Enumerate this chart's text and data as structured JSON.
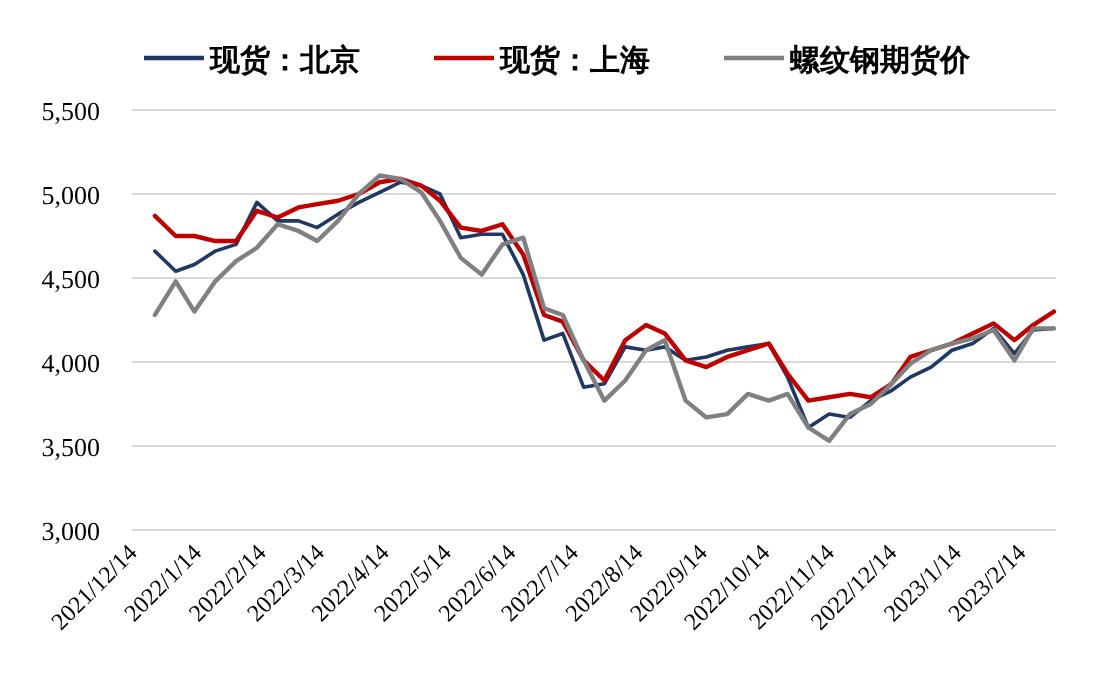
{
  "chart_data": {
    "type": "line",
    "x": [
      "2021-12-21",
      "2021-12-31",
      "2022-01-09",
      "2022-01-19",
      "2022-01-29",
      "2022-02-08",
      "2022-02-18",
      "2022-02-28",
      "2022-03-09",
      "2022-03-19",
      "2022-03-29",
      "2022-04-08",
      "2022-04-18",
      "2022-04-28",
      "2022-05-07",
      "2022-05-17",
      "2022-05-27",
      "2022-06-06",
      "2022-06-16",
      "2022-06-26",
      "2022-07-05",
      "2022-07-15",
      "2022-07-25",
      "2022-08-04",
      "2022-08-14",
      "2022-08-23",
      "2022-09-02",
      "2022-09-12",
      "2022-09-22",
      "2022-10-02",
      "2022-10-12",
      "2022-10-21",
      "2022-10-31",
      "2022-11-10",
      "2022-11-20",
      "2022-11-30",
      "2022-12-10",
      "2022-12-19",
      "2022-12-29",
      "2023-01-08",
      "2023-01-18",
      "2023-01-28",
      "2023-02-07",
      "2023-02-16",
      "2023-02-26"
    ],
    "series": [
      {
        "name": "现货：北京",
        "color": "#1f3864",
        "values": [
          4660,
          4540,
          4580,
          4660,
          4700,
          4950,
          4840,
          4840,
          4800,
          4880,
          4950,
          5010,
          5070,
          5050,
          5000,
          4740,
          4760,
          4760,
          4520,
          4130,
          4170,
          3850,
          3870,
          4090,
          4070,
          4090,
          4010,
          4030,
          4070,
          4090,
          4110,
          3910,
          3610,
          3690,
          3670,
          3770,
          3830,
          3910,
          3970,
          4070,
          4110,
          4200,
          4050,
          4190,
          4200
        ]
      },
      {
        "name": "现货：上海",
        "color": "#c00000",
        "values": [
          4870,
          4750,
          4750,
          4720,
          4720,
          4900,
          4860,
          4920,
          4940,
          4960,
          5000,
          5070,
          5090,
          5050,
          4960,
          4800,
          4780,
          4820,
          4640,
          4280,
          4240,
          4010,
          3890,
          4130,
          4220,
          4170,
          4010,
          3970,
          4030,
          4070,
          4110,
          3930,
          3770,
          3790,
          3810,
          3790,
          3870,
          4030,
          4070,
          4110,
          4170,
          4230,
          4130,
          4220,
          4300
        ]
      },
      {
        "name": "螺纹钢期货价",
        "color": "#808080",
        "values": [
          4280,
          4480,
          4300,
          4480,
          4600,
          4680,
          4820,
          4780,
          4720,
          4840,
          5000,
          5110,
          5090,
          5010,
          4840,
          4620,
          4520,
          4700,
          4740,
          4320,
          4280,
          4010,
          3770,
          3890,
          4070,
          4130,
          3770,
          3670,
          3690,
          3810,
          3770,
          3810,
          3610,
          3530,
          3690,
          3750,
          3870,
          3990,
          4070,
          4110,
          4140,
          4190,
          4010,
          4200,
          4200
        ]
      }
    ],
    "xlim": [
      "2021-12-10",
      "2023-02-27"
    ],
    "xticks": [
      {
        "value": "2021-12-14",
        "label": "2021/12/14"
      },
      {
        "value": "2022-01-14",
        "label": "2022/1/14"
      },
      {
        "value": "2022-02-14",
        "label": "2022/2/14"
      },
      {
        "value": "2022-03-14",
        "label": "2022/3/14"
      },
      {
        "value": "2022-04-14",
        "label": "2022/4/14"
      },
      {
        "value": "2022-05-14",
        "label": "2022/5/14"
      },
      {
        "value": "2022-06-14",
        "label": "2022/6/14"
      },
      {
        "value": "2022-07-14",
        "label": "2022/7/14"
      },
      {
        "value": "2022-08-14",
        "label": "2022/8/14"
      },
      {
        "value": "2022-09-14",
        "label": "2022/9/14"
      },
      {
        "value": "2022-10-14",
        "label": "2022/10/14"
      },
      {
        "value": "2022-11-14",
        "label": "2022/11/14"
      },
      {
        "value": "2022-12-14",
        "label": "2022/12/14"
      },
      {
        "value": "2023-01-14",
        "label": "2023/1/14"
      },
      {
        "value": "2023-02-14",
        "label": "2023/2/14"
      }
    ],
    "ylim": [
      3000,
      5500
    ],
    "yticks": [
      {
        "value": 3000,
        "label": "3,000"
      },
      {
        "value": 3500,
        "label": "3,500"
      },
      {
        "value": 4000,
        "label": "4,000"
      },
      {
        "value": 4500,
        "label": "4,500"
      },
      {
        "value": 5000,
        "label": "5,000"
      },
      {
        "value": 5500,
        "label": "5,500"
      }
    ],
    "grid": "y",
    "legend": "top",
    "marker": "none",
    "line_style": "solid"
  }
}
